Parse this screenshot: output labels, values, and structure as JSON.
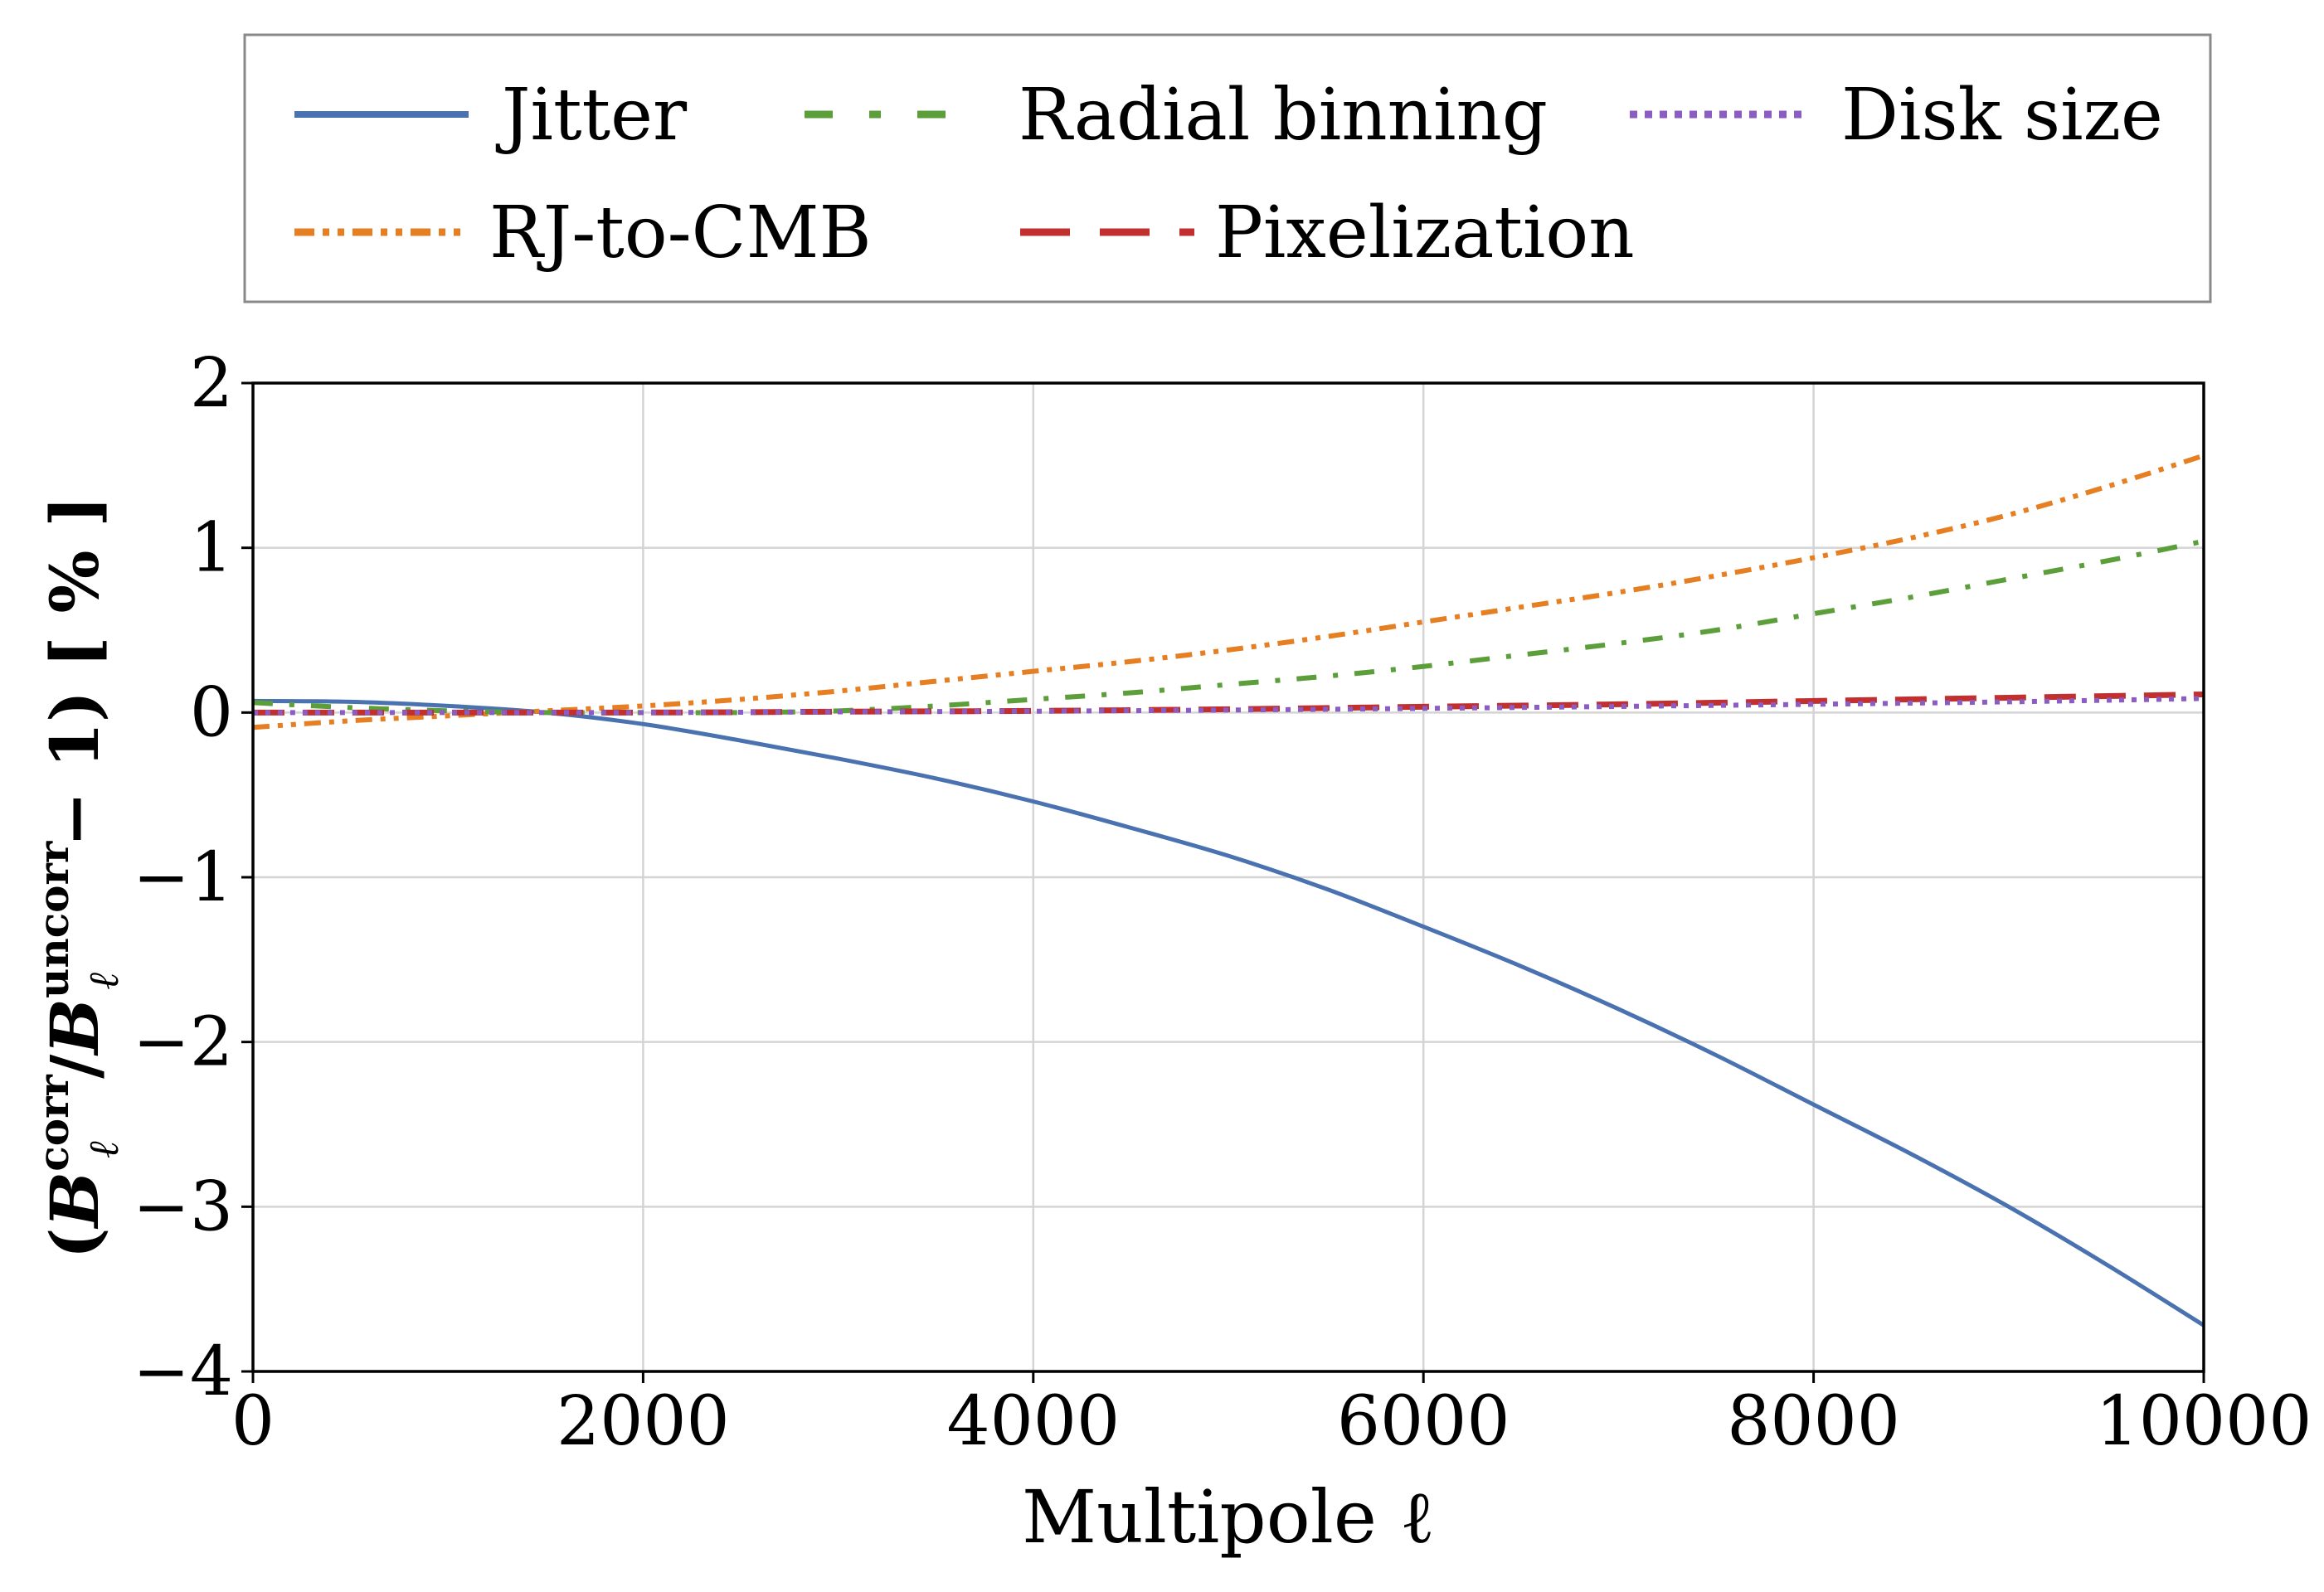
{
  "chart_data": {
    "type": "line",
    "title": "",
    "xlabel": "Multipole ℓ",
    "ylabel": {
      "open": "(",
      "B_corr": "B",
      "corr_sup": "corr",
      "ell_sub": "ℓ",
      "slash": "/",
      "B_uncorr": "B",
      "uncorr_sup": "uncorr",
      "ell_sub2": "ℓ",
      "tail": "− 1)  [ % ]"
    },
    "xlim": [
      0,
      10000
    ],
    "ylim": [
      -4,
      2
    ],
    "xticks": [
      0,
      2000,
      4000,
      6000,
      8000,
      10000
    ],
    "xtick_labels": [
      "0",
      "2000",
      "4000",
      "6000",
      "8000",
      "10000"
    ],
    "yticks": [
      -4,
      -3,
      -2,
      -1,
      0,
      1,
      2
    ],
    "ytick_labels": [
      "−4",
      "−3",
      "−2",
      "−1",
      "0",
      "1",
      "2"
    ],
    "grid": true,
    "legend_position": "top (above plot), 3 columns",
    "series": [
      {
        "name": "Jitter",
        "color": "#4a72b0",
        "style": "solid",
        "x": [
          0,
          500,
          1000,
          1500,
          2000,
          2500,
          3000,
          3500,
          4000,
          4500,
          5000,
          5500,
          6000,
          6500,
          7000,
          7500,
          8000,
          8500,
          9000,
          9500,
          10000
        ],
        "y": [
          0.07,
          0.065,
          0.04,
          0.0,
          -0.07,
          -0.17,
          -0.28,
          -0.4,
          -0.54,
          -0.7,
          -0.87,
          -1.07,
          -1.3,
          -1.54,
          -1.8,
          -2.08,
          -2.38,
          -2.68,
          -3.0,
          -3.35,
          -3.72
        ]
      },
      {
        "name": "RJ-to-CMB",
        "color": "#e67e22",
        "style": "dash-dot-dot",
        "x": [
          0,
          500,
          1000,
          1500,
          2000,
          2500,
          3000,
          3500,
          4000,
          4500,
          5000,
          5500,
          6000,
          6500,
          7000,
          7500,
          8000,
          8500,
          9000,
          9500,
          10000
        ],
        "y": [
          -0.09,
          -0.05,
          -0.02,
          0.01,
          0.04,
          0.08,
          0.13,
          0.19,
          0.25,
          0.31,
          0.38,
          0.46,
          0.55,
          0.64,
          0.73,
          0.83,
          0.94,
          1.06,
          1.2,
          1.37,
          1.56
        ]
      },
      {
        "name": "Radial binning",
        "color": "#5c9e3a",
        "style": "dash-dot",
        "x": [
          0,
          500,
          1000,
          1500,
          2000,
          2500,
          3000,
          3500,
          4000,
          4500,
          5000,
          5500,
          6000,
          6500,
          7000,
          7500,
          8000,
          8500,
          9000,
          9500,
          10000
        ],
        "y": [
          0.06,
          0.03,
          0.01,
          0.0,
          0.0,
          0.0,
          0.01,
          0.04,
          0.08,
          0.12,
          0.17,
          0.22,
          0.28,
          0.35,
          0.42,
          0.5,
          0.6,
          0.7,
          0.81,
          0.92,
          1.04
        ]
      },
      {
        "name": "Pixelization",
        "color": "#c1302f",
        "style": "dashed",
        "x": [
          0,
          1000,
          2000,
          3000,
          4000,
          5000,
          6000,
          7000,
          8000,
          9000,
          10000
        ],
        "y": [
          0.0,
          0.0,
          0.0,
          0.005,
          0.01,
          0.02,
          0.035,
          0.05,
          0.07,
          0.09,
          0.11
        ]
      },
      {
        "name": "Disk size",
        "color": "#8b5cc4",
        "style": "dotted",
        "x": [
          0,
          1000,
          2000,
          3000,
          4000,
          5000,
          6000,
          7000,
          8000,
          9000,
          10000
        ],
        "y": [
          0.0,
          0.0,
          0.0,
          0.004,
          0.008,
          0.015,
          0.025,
          0.037,
          0.05,
          0.065,
          0.085
        ]
      }
    ],
    "legend_order": [
      "Jitter",
      "Radial binning",
      "Disk size",
      "RJ-to-CMB",
      "Pixelization"
    ]
  }
}
